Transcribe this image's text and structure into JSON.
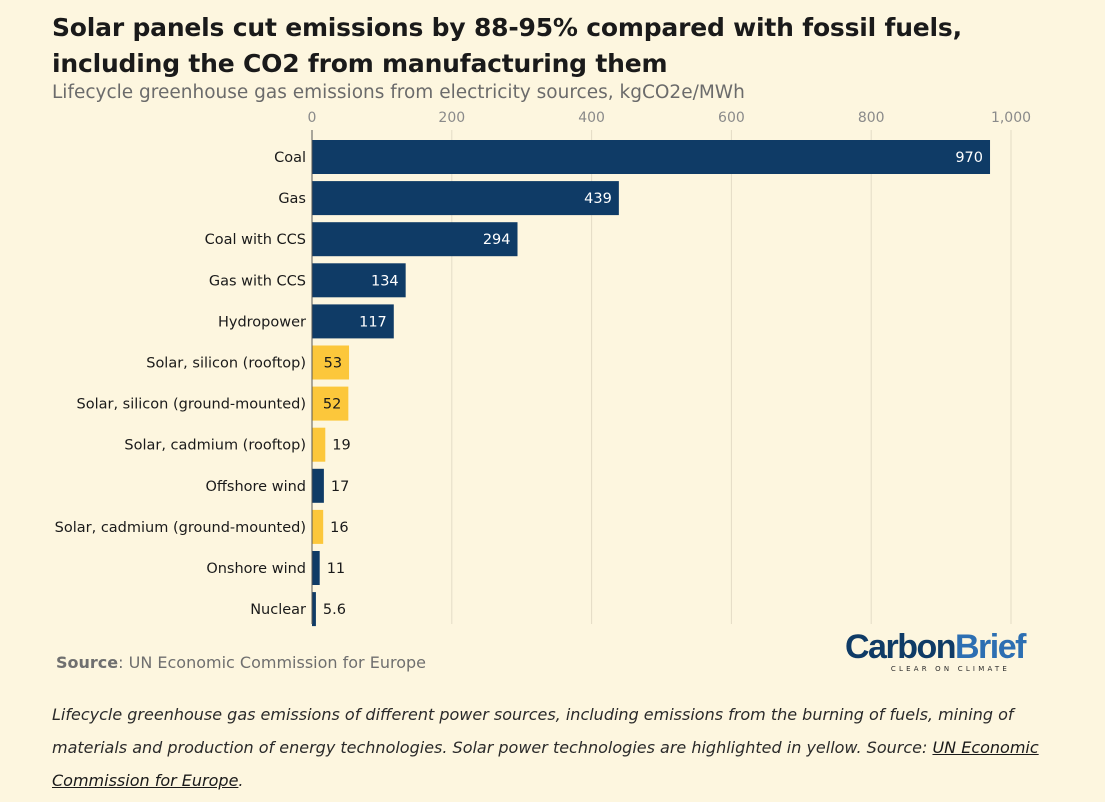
{
  "header": {
    "title": "Solar panels cut emissions by 88-95% compared with fossil fuels, including the CO2 from manufacturing them",
    "subtitle": "Lifecycle greenhouse gas emissions from electricity sources, kgCO2e/MWh"
  },
  "colors": {
    "fossil_and_other": "#0f3b66",
    "solar": "#fcc73b",
    "background": "#fdf6df",
    "grid": "#e3dcc6"
  },
  "chart_data": {
    "type": "bar",
    "orientation": "horizontal",
    "title": "Solar panels cut emissions by 88-95% compared with fossil fuels, including the CO2 from manufacturing them",
    "subtitle": "Lifecycle greenhouse gas emissions from electricity sources, kgCO2e/MWh",
    "xlim": [
      0,
      1000
    ],
    "x_ticks": [
      0,
      200,
      400,
      600,
      800,
      1000
    ],
    "x_tick_labels": [
      "0",
      "200",
      "400",
      "600",
      "800",
      "1,000"
    ],
    "x_axis_position": "top",
    "grid": true,
    "categories": [
      "Coal",
      "Gas",
      "Coal with CCS",
      "Gas with CCS",
      "Hydropower",
      "Solar, silicon (rooftop)",
      "Solar, silicon (ground-mounted)",
      "Solar, cadmium (rooftop)",
      "Offshore wind",
      "Solar, cadmium (ground-mounted)",
      "Onshore wind",
      "Nuclear"
    ],
    "values": [
      970,
      439,
      294,
      134,
      117,
      53,
      52,
      19,
      17,
      16,
      11,
      5.6
    ],
    "value_labels": [
      "970",
      "439",
      "294",
      "134",
      "117",
      "53",
      "52",
      "19",
      "17",
      "16",
      "11",
      "5.6"
    ],
    "highlight": [
      false,
      false,
      false,
      false,
      false,
      true,
      true,
      true,
      false,
      true,
      false,
      false
    ]
  },
  "source": {
    "label": "Source",
    "text": ": UN Economic Commission for Europe"
  },
  "logo": {
    "part1": "Carbon",
    "part2": "Brief",
    "tagline": "CLEAR ON CLIMATE"
  },
  "caption": {
    "text": "Lifecycle greenhouse gas emissions of different power sources, including emissions from the burning of fuels, mining of materials and production of energy technologies. Solar power technologies are highlighted in yellow.",
    "source_prefix": "Source: ",
    "source_link": "UN Economic Commission for Europe",
    "source_suffix": "."
  }
}
